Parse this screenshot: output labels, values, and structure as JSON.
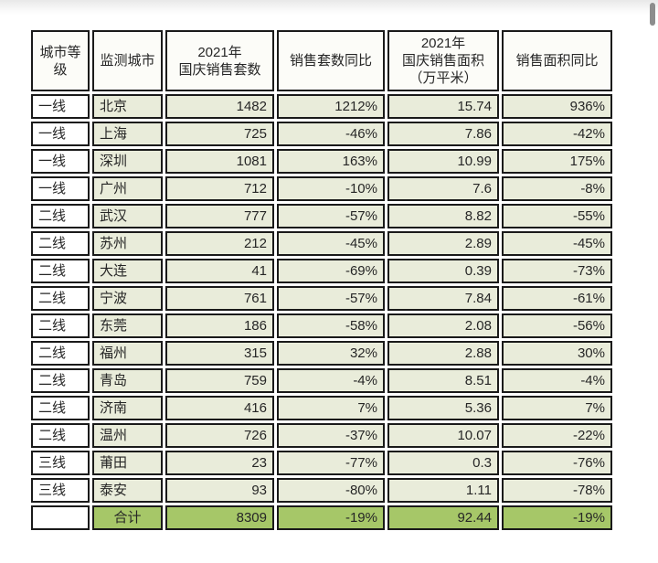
{
  "page": {
    "background": "#ffffff",
    "top_fade_color": "#e8e8e8"
  },
  "scrollbar": {
    "color": "#8d8d8d"
  },
  "colors": {
    "page_bg": "#ffffff",
    "top_fade": "#e8e8e8",
    "scrollbar": "#8d8d8d",
    "border": "#1a1a1a",
    "header_bg": "#fcfcf8",
    "cell_bg": "#e9ecda",
    "tier_bg": "#ffffff",
    "total_bg": "#a6c768",
    "text": "#262626"
  },
  "table": {
    "headers": [
      {
        "id": "tier",
        "label": "城市等\n级"
      },
      {
        "id": "city",
        "label": "监测城市"
      },
      {
        "id": "units",
        "label": "2021年\n国庆销售套数"
      },
      {
        "id": "units_yoy",
        "label": "销售套数同比"
      },
      {
        "id": "area",
        "label": "2021年\n国庆销售面积\n（万平米）"
      },
      {
        "id": "area_yoy",
        "label": "销售面积同比"
      }
    ],
    "rows": [
      {
        "tier": "一线",
        "city": "北京",
        "units": "1482",
        "units_yoy": "1212%",
        "area": "15.74",
        "area_yoy": "936%"
      },
      {
        "tier": "一线",
        "city": "上海",
        "units": "725",
        "units_yoy": "-46%",
        "area": "7.86",
        "area_yoy": "-42%"
      },
      {
        "tier": "一线",
        "city": "深圳",
        "units": "1081",
        "units_yoy": "163%",
        "area": "10.99",
        "area_yoy": "175%"
      },
      {
        "tier": "一线",
        "city": "广州",
        "units": "712",
        "units_yoy": "-10%",
        "area": "7.6",
        "area_yoy": "-8%"
      },
      {
        "tier": "二线",
        "city": "武汉",
        "units": "777",
        "units_yoy": "-57%",
        "area": "8.82",
        "area_yoy": "-55%"
      },
      {
        "tier": "二线",
        "city": "苏州",
        "units": "212",
        "units_yoy": "-45%",
        "area": "2.89",
        "area_yoy": "-45%"
      },
      {
        "tier": "二线",
        "city": "大连",
        "units": "41",
        "units_yoy": "-69%",
        "area": "0.39",
        "area_yoy": "-73%"
      },
      {
        "tier": "二线",
        "city": "宁波",
        "units": "761",
        "units_yoy": "-57%",
        "area": "7.84",
        "area_yoy": "-61%"
      },
      {
        "tier": "二线",
        "city": "东莞",
        "units": "186",
        "units_yoy": "-58%",
        "area": "2.08",
        "area_yoy": "-56%"
      },
      {
        "tier": "二线",
        "city": "福州",
        "units": "315",
        "units_yoy": "32%",
        "area": "2.88",
        "area_yoy": "30%"
      },
      {
        "tier": "二线",
        "city": "青岛",
        "units": "759",
        "units_yoy": "-4%",
        "area": "8.51",
        "area_yoy": "-4%"
      },
      {
        "tier": "二线",
        "city": "济南",
        "units": "416",
        "units_yoy": "7%",
        "area": "5.36",
        "area_yoy": "7%"
      },
      {
        "tier": "二线",
        "city": "温州",
        "units": "726",
        "units_yoy": "-37%",
        "area": "10.07",
        "area_yoy": "-22%"
      },
      {
        "tier": "三线",
        "city": "莆田",
        "units": "23",
        "units_yoy": "-77%",
        "area": "0.3",
        "area_yoy": "-76%"
      },
      {
        "tier": "三线",
        "city": "泰安",
        "units": "93",
        "units_yoy": "-80%",
        "area": "1.11",
        "area_yoy": "-78%"
      }
    ],
    "total": {
      "tier": "",
      "city": "合计",
      "units": "8309",
      "units_yoy": "-19%",
      "area": "92.44",
      "area_yoy": "-19%"
    }
  }
}
